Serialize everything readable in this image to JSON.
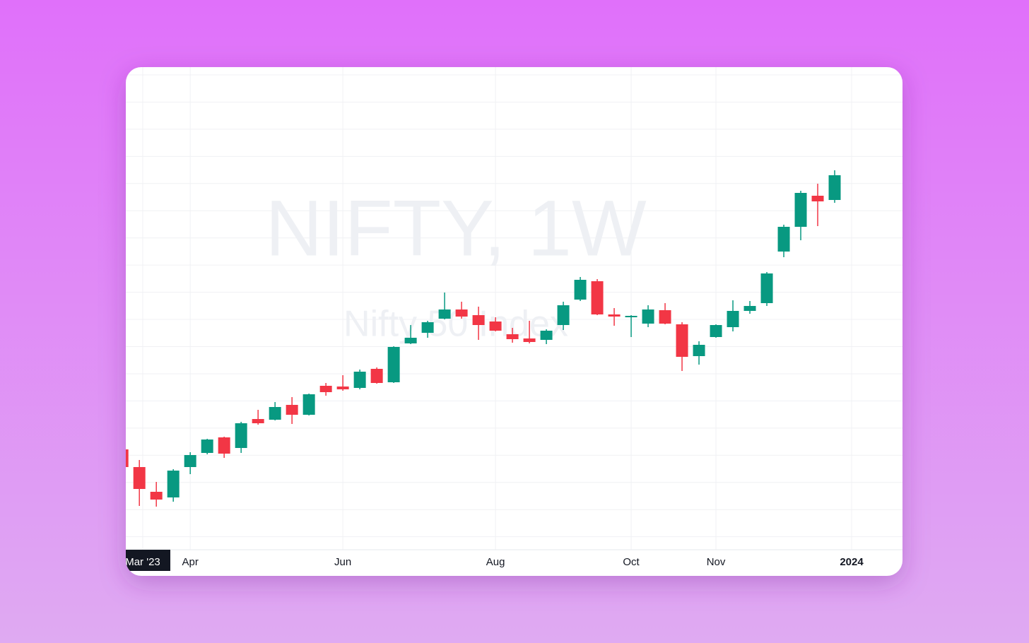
{
  "chart_data": {
    "type": "candlestick",
    "title": "NIFTY, 1W",
    "subtitle": "Nifty 50 Index",
    "categories": [
      null,
      null,
      null,
      null,
      null,
      null,
      null,
      null,
      null,
      null,
      null,
      null,
      null,
      null,
      null,
      null,
      null,
      null,
      null,
      null,
      null,
      null,
      null,
      null,
      null,
      null,
      null,
      null,
      null,
      null,
      null,
      null,
      null,
      null,
      null,
      null,
      null,
      null,
      null,
      null,
      null,
      null,
      null
    ],
    "open": [
      17640,
      17390,
      17040,
      16960,
      17390,
      17590,
      17810,
      17660,
      18070,
      18060,
      18270,
      18130,
      18540,
      18530,
      18510,
      18780,
      18590,
      19140,
      19290,
      19490,
      19620,
      19540,
      19450,
      19270,
      19210,
      19190,
      19400,
      19760,
      20020,
      19550,
      19510,
      19420,
      19610,
      19410,
      18960,
      19230,
      19370,
      19600,
      19710,
      20440,
      20790,
      21230,
      21170
    ],
    "high": [
      17640,
      17490,
      17180,
      17360,
      17600,
      17790,
      17820,
      18030,
      18200,
      18310,
      18380,
      18430,
      18580,
      18690,
      18770,
      18800,
      19100,
      19400,
      19460,
      19860,
      19730,
      19660,
      19510,
      19360,
      19460,
      19340,
      19730,
      20080,
      20050,
      19640,
      19540,
      19680,
      19710,
      19440,
      19170,
      19410,
      19750,
      19740,
      20150,
      20820,
      21300,
      21400,
      21590
    ],
    "low": [
      17390,
      16840,
      16830,
      16900,
      17290,
      17570,
      17520,
      17590,
      17990,
      18050,
      18000,
      18120,
      18400,
      18470,
      18490,
      18570,
      18580,
      19130,
      19220,
      19480,
      19490,
      19190,
      19310,
      19150,
      19140,
      19130,
      19330,
      19740,
      19540,
      19390,
      19230,
      19370,
      19410,
      18750,
      18840,
      19220,
      19310,
      19560,
      19670,
      20360,
      20600,
      20800,
      21130
    ],
    "close": [
      17390,
      17080,
      16930,
      17340,
      17560,
      17780,
      17580,
      18010,
      18010,
      18240,
      18130,
      18420,
      18450,
      18490,
      18740,
      18580,
      19090,
      19220,
      19440,
      19620,
      19520,
      19400,
      19320,
      19200,
      19160,
      19320,
      19680,
      20040,
      19550,
      19520,
      19530,
      19620,
      19420,
      18950,
      19120,
      19400,
      19600,
      19670,
      20130,
      20790,
      21270,
      21150,
      21520
    ],
    "up_color": "#089981",
    "down_color": "#f23645",
    "ylim": [
      16220,
      23050
    ],
    "xlim": [
      0.2,
      46
    ],
    "xticks": [
      {
        "value": 1.2,
        "label": "Mar '23"
      },
      {
        "value": 4,
        "label": "Apr"
      },
      {
        "value": 13,
        "label": "Jun"
      },
      {
        "value": 22,
        "label": "Aug"
      },
      {
        "value": 30,
        "label": "Oct"
      },
      {
        "value": 35,
        "label": "Nov"
      },
      {
        "value": 43,
        "label": "2024"
      }
    ],
    "grid": true
  }
}
